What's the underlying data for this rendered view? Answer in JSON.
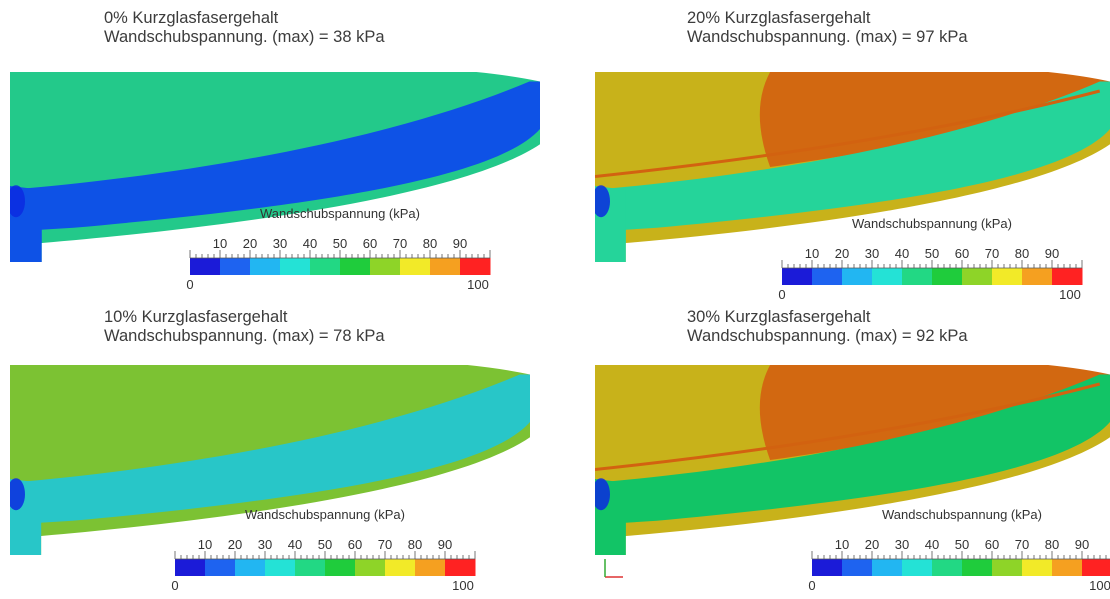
{
  "panels": [
    {
      "id": "p0",
      "title_line1": "0% Kurzglasfasergehalt",
      "title_line2": "Wandschubspannung. (max) = 38 kPa",
      "fill_color": "#23c98a",
      "band_color": "#0e52e6",
      "edge_color": "#0a2ae0",
      "max_kpa": 38
    },
    {
      "id": "p1",
      "title_line1": "20% Kurzglasfasergehalt",
      "title_line2": "Wandschubspannung. (max) = 97 kPa",
      "fill_color": "#c8b21a",
      "band_color": "#25d49a",
      "edge_color": "#0a2ae0",
      "hot_color": "#d26210",
      "max_kpa": 97
    },
    {
      "id": "p2",
      "title_line1": "10% Kurzglasfasergehalt",
      "title_line2": "Wandschubspannung. (max) = 78 kPa",
      "fill_color": "#7cc233",
      "band_color": "#28c6c8",
      "edge_color": "#0a2ae0",
      "max_kpa": 78
    },
    {
      "id": "p3",
      "title_line1": "30% Kurzglasfasergehalt",
      "title_line2": "Wandschubspannung. (max) = 92 kPa",
      "fill_color": "#c8b21a",
      "band_color": "#12c466",
      "edge_color": "#0a2ae0",
      "hot_color": "#d26210",
      "max_kpa": 92
    }
  ],
  "legend": {
    "title": "Wandschubspannung (kPa)",
    "ticks": [
      "10",
      "20",
      "30",
      "40",
      "50",
      "60",
      "70",
      "80",
      "90"
    ],
    "min_label": "0",
    "max_label": "100",
    "colors": [
      "#1b1bd8",
      "#1e63f0",
      "#22b6f2",
      "#24e2d6",
      "#22d884",
      "#1fcc3c",
      "#8ed428",
      "#f2ea28",
      "#f5a020",
      "#ff2222"
    ]
  }
}
